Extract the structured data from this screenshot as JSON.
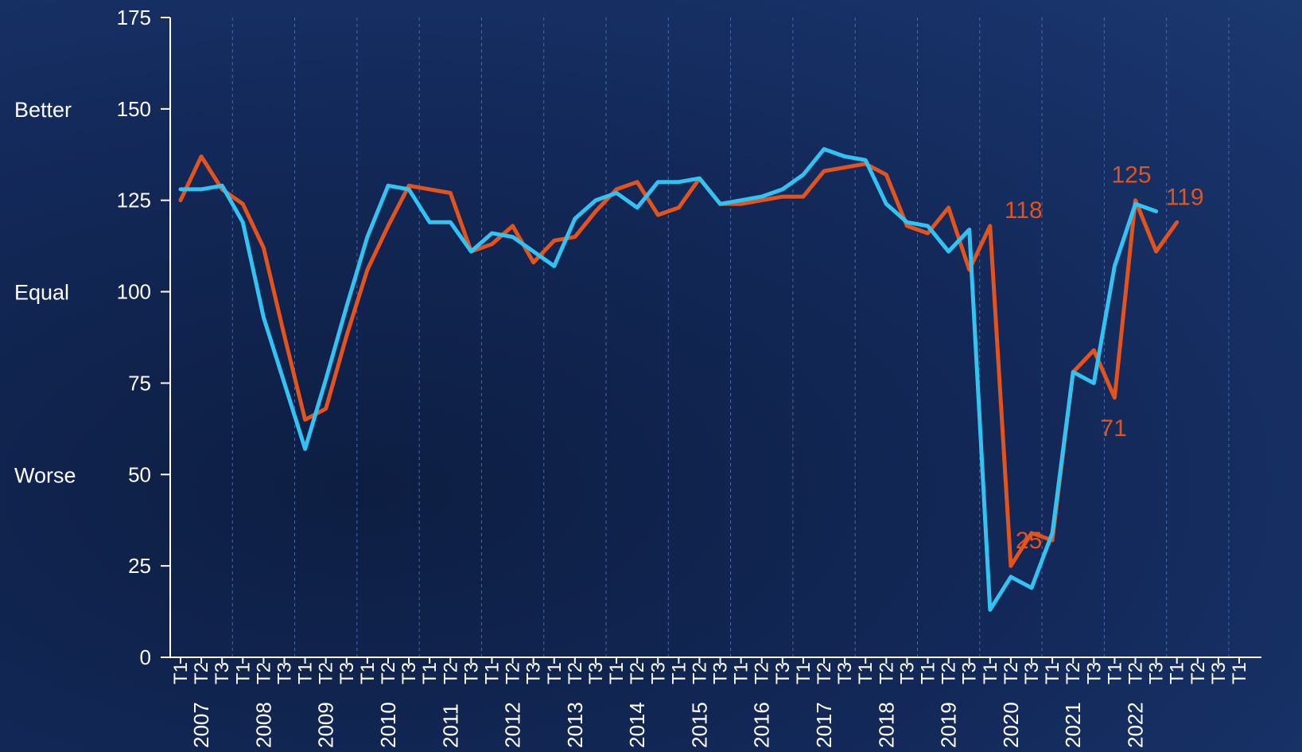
{
  "chart_data": {
    "type": "line",
    "ylim": [
      0,
      175
    ],
    "y_ticks": [
      "0",
      "25",
      "50",
      "75",
      "100",
      "125",
      "150",
      "175"
    ],
    "y_tick_values": [
      0,
      25,
      50,
      75,
      100,
      125,
      150,
      175
    ],
    "side_labels": [
      {
        "text": "Better",
        "value": 150
      },
      {
        "text": "Equal",
        "value": 100
      },
      {
        "text": "Worse",
        "value": 50
      }
    ],
    "quarter_labels": [
      "T1",
      "T2",
      "T3",
      "T1",
      "T2",
      "T3",
      "T1",
      "T2",
      "T3",
      "T1",
      "T2",
      "T3",
      "T1",
      "T2",
      "T3",
      "T1",
      "T2",
      "T3",
      "T1",
      "T2",
      "T3",
      "T1",
      "T2",
      "T3",
      "T1",
      "T2",
      "T3",
      "T1",
      "T2",
      "T3",
      "T1",
      "T2",
      "T3",
      "T1",
      "T2",
      "T3",
      "T1",
      "T2",
      "T3",
      "T1",
      "T2",
      "T3",
      "T1",
      "T2",
      "T3",
      "T1",
      "T2",
      "T3",
      "T1",
      "T2",
      "T3",
      "T1"
    ],
    "years": [
      "2007",
      "2008",
      "2009",
      "2010",
      "2011",
      "2012",
      "2013",
      "2014",
      "2015",
      "2016",
      "2017",
      "2018",
      "2019",
      "2020",
      "2021",
      "2022"
    ],
    "grid": "vertical-dashed-at-year-start",
    "colors": {
      "series_1": "#e3531c",
      "series_2": "#33c3f2",
      "axis": "#ffffff",
      "grid": "#4a6aa8"
    },
    "series": [
      {
        "color": "#e3531c",
        "values": [
          125,
          137,
          128,
          124,
          112,
          88,
          65,
          68,
          88,
          106,
          118,
          129,
          128,
          127,
          111,
          113,
          118,
          108,
          114,
          115,
          122,
          128,
          130,
          121,
          123,
          131,
          124,
          124,
          125,
          126,
          126,
          133,
          134,
          135,
          132,
          118,
          116,
          123,
          106,
          118,
          25,
          34,
          32,
          78,
          84,
          71,
          125,
          111,
          119
        ]
      },
      {
        "color": "#33c3f2",
        "values": [
          128,
          128,
          129,
          119,
          93,
          75,
          57,
          76,
          96,
          115,
          129,
          128,
          119,
          119,
          111,
          116,
          115,
          111,
          107,
          120,
          125,
          127,
          123,
          130,
          130,
          131,
          124,
          125,
          126,
          128,
          132,
          139,
          137,
          136,
          124,
          119,
          118,
          111,
          117,
          13,
          22,
          19,
          34,
          78,
          75,
          107,
          124,
          122
        ]
      }
    ],
    "annotations": [
      {
        "text": "118",
        "series": 0,
        "index": 39,
        "color": "#e3531c"
      },
      {
        "text": "25",
        "series": 0,
        "index": 40,
        "color": "#e3531c"
      },
      {
        "text": "71",
        "series": 0,
        "index": 45,
        "color": "#e3531c"
      },
      {
        "text": "125",
        "series": 0,
        "index": 46,
        "color": "#e3531c"
      },
      {
        "text": "119",
        "series": 0,
        "index": 48,
        "color": "#e3531c"
      }
    ]
  }
}
